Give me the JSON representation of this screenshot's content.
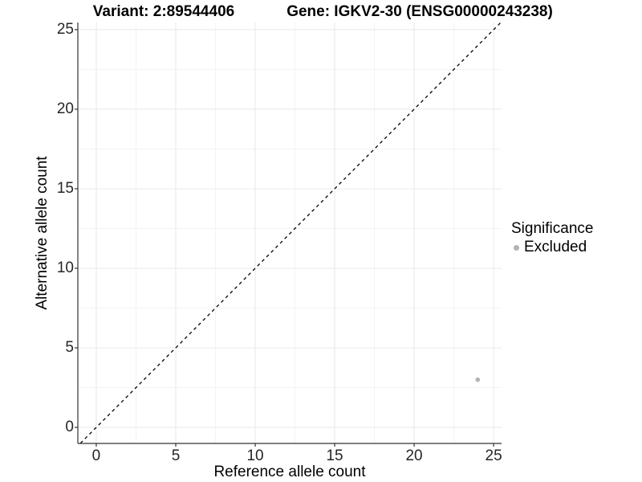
{
  "titles": {
    "variant": "Variant: 2:89544406",
    "gene": "Gene: IGKV2-30 (ENSG00000243238)"
  },
  "legend": {
    "title": "Significance",
    "items": [
      {
        "label": "Excluded",
        "color": "#b3b3b3"
      }
    ]
  },
  "chart_data": {
    "type": "scatter",
    "title_left": "Variant: 2:89544406",
    "title_right": "Gene: IGKV2-30 (ENSG00000243238)",
    "xlabel": "Reference allele count",
    "ylabel": "Alternative allele count",
    "xlim": [
      -1.16,
      25.5
    ],
    "ylim": [
      -1.01,
      25.45
    ],
    "x_ticks": [
      0,
      5,
      10,
      15,
      20,
      25
    ],
    "y_ticks": [
      0,
      5,
      10,
      15,
      20,
      25
    ],
    "x_minor_ticks": [
      2.5,
      7.5,
      12.5,
      17.5,
      22.5
    ],
    "y_minor_ticks": [
      2.5,
      7.5,
      12.5,
      17.5,
      22.5
    ],
    "grid": "major+minor",
    "legend_position": "right",
    "series": [
      {
        "name": "Excluded",
        "color": "#b3b3b3",
        "marker": "circle",
        "marker_radius": 2.8,
        "points": [
          {
            "x": 24,
            "y": 3
          }
        ]
      }
    ],
    "reference_line": {
      "type": "identity y=x",
      "style": "dashed",
      "color": "#000000"
    },
    "colors": {
      "axis": "#333333",
      "grid_major": "#e8e8e8",
      "grid_minor": "#f3f3f3",
      "tick_text": "#262626",
      "background": "#ffffff"
    }
  }
}
